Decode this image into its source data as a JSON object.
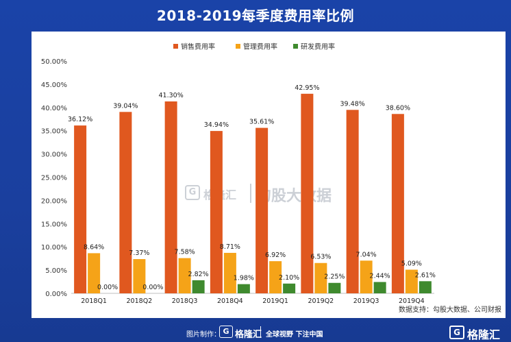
{
  "chart_data": {
    "type": "bar",
    "title": "2018-2019每季度费用率比例",
    "categories": [
      "2018Q1",
      "2018Q2",
      "2018Q3",
      "2018Q4",
      "2019Q1",
      "2019Q2",
      "2019Q3",
      "2019Q4"
    ],
    "series": [
      {
        "name": "销售费用率",
        "color": "#e0581f",
        "values": [
          36.12,
          39.04,
          41.3,
          34.94,
          35.61,
          42.95,
          39.48,
          38.6
        ],
        "labels": [
          "36.12%",
          "39.04%",
          "41.30%",
          "34.94%",
          "35.61%",
          "42.95%",
          "39.48%",
          "38.60%"
        ]
      },
      {
        "name": "管理费用率",
        "color": "#f5a318",
        "values": [
          8.64,
          7.37,
          7.58,
          8.71,
          6.92,
          6.53,
          7.04,
          5.09
        ],
        "labels": [
          "8.64%",
          "7.37%",
          "7.58%",
          "8.71%",
          "6.92%",
          "6.53%",
          "7.04%",
          "5.09%"
        ]
      },
      {
        "name": "研发费用率",
        "color": "#3f8a2e",
        "values": [
          0.0,
          0.0,
          2.82,
          1.98,
          2.1,
          2.25,
          2.44,
          2.61
        ],
        "labels": [
          "0.00%",
          "0.00%",
          "2.82%",
          "1.98%",
          "2.10%",
          "2.25%",
          "2.44%",
          "2.61%"
        ]
      }
    ],
    "yticks": [
      "0.00%",
      "5.00%",
      "10.00%",
      "15.00%",
      "20.00%",
      "25.00%",
      "30.00%",
      "35.00%",
      "40.00%",
      "45.00%",
      "50.00%"
    ],
    "ylim": [
      0,
      50
    ],
    "legend_position": "top",
    "grid": false
  },
  "source_text": "数据支持：勾股大数据、公司财报",
  "footer": {
    "made_by": "图片制作：",
    "logo_mark": "G",
    "brand": "格隆汇",
    "slogan": "全球视野 下注中国"
  },
  "watermark": {
    "logo_mark": "G",
    "brand": "格隆汇",
    "brand2": "勾股大数据"
  },
  "colors": {
    "background": "#1a43a8",
    "panel": "#ffffff"
  }
}
